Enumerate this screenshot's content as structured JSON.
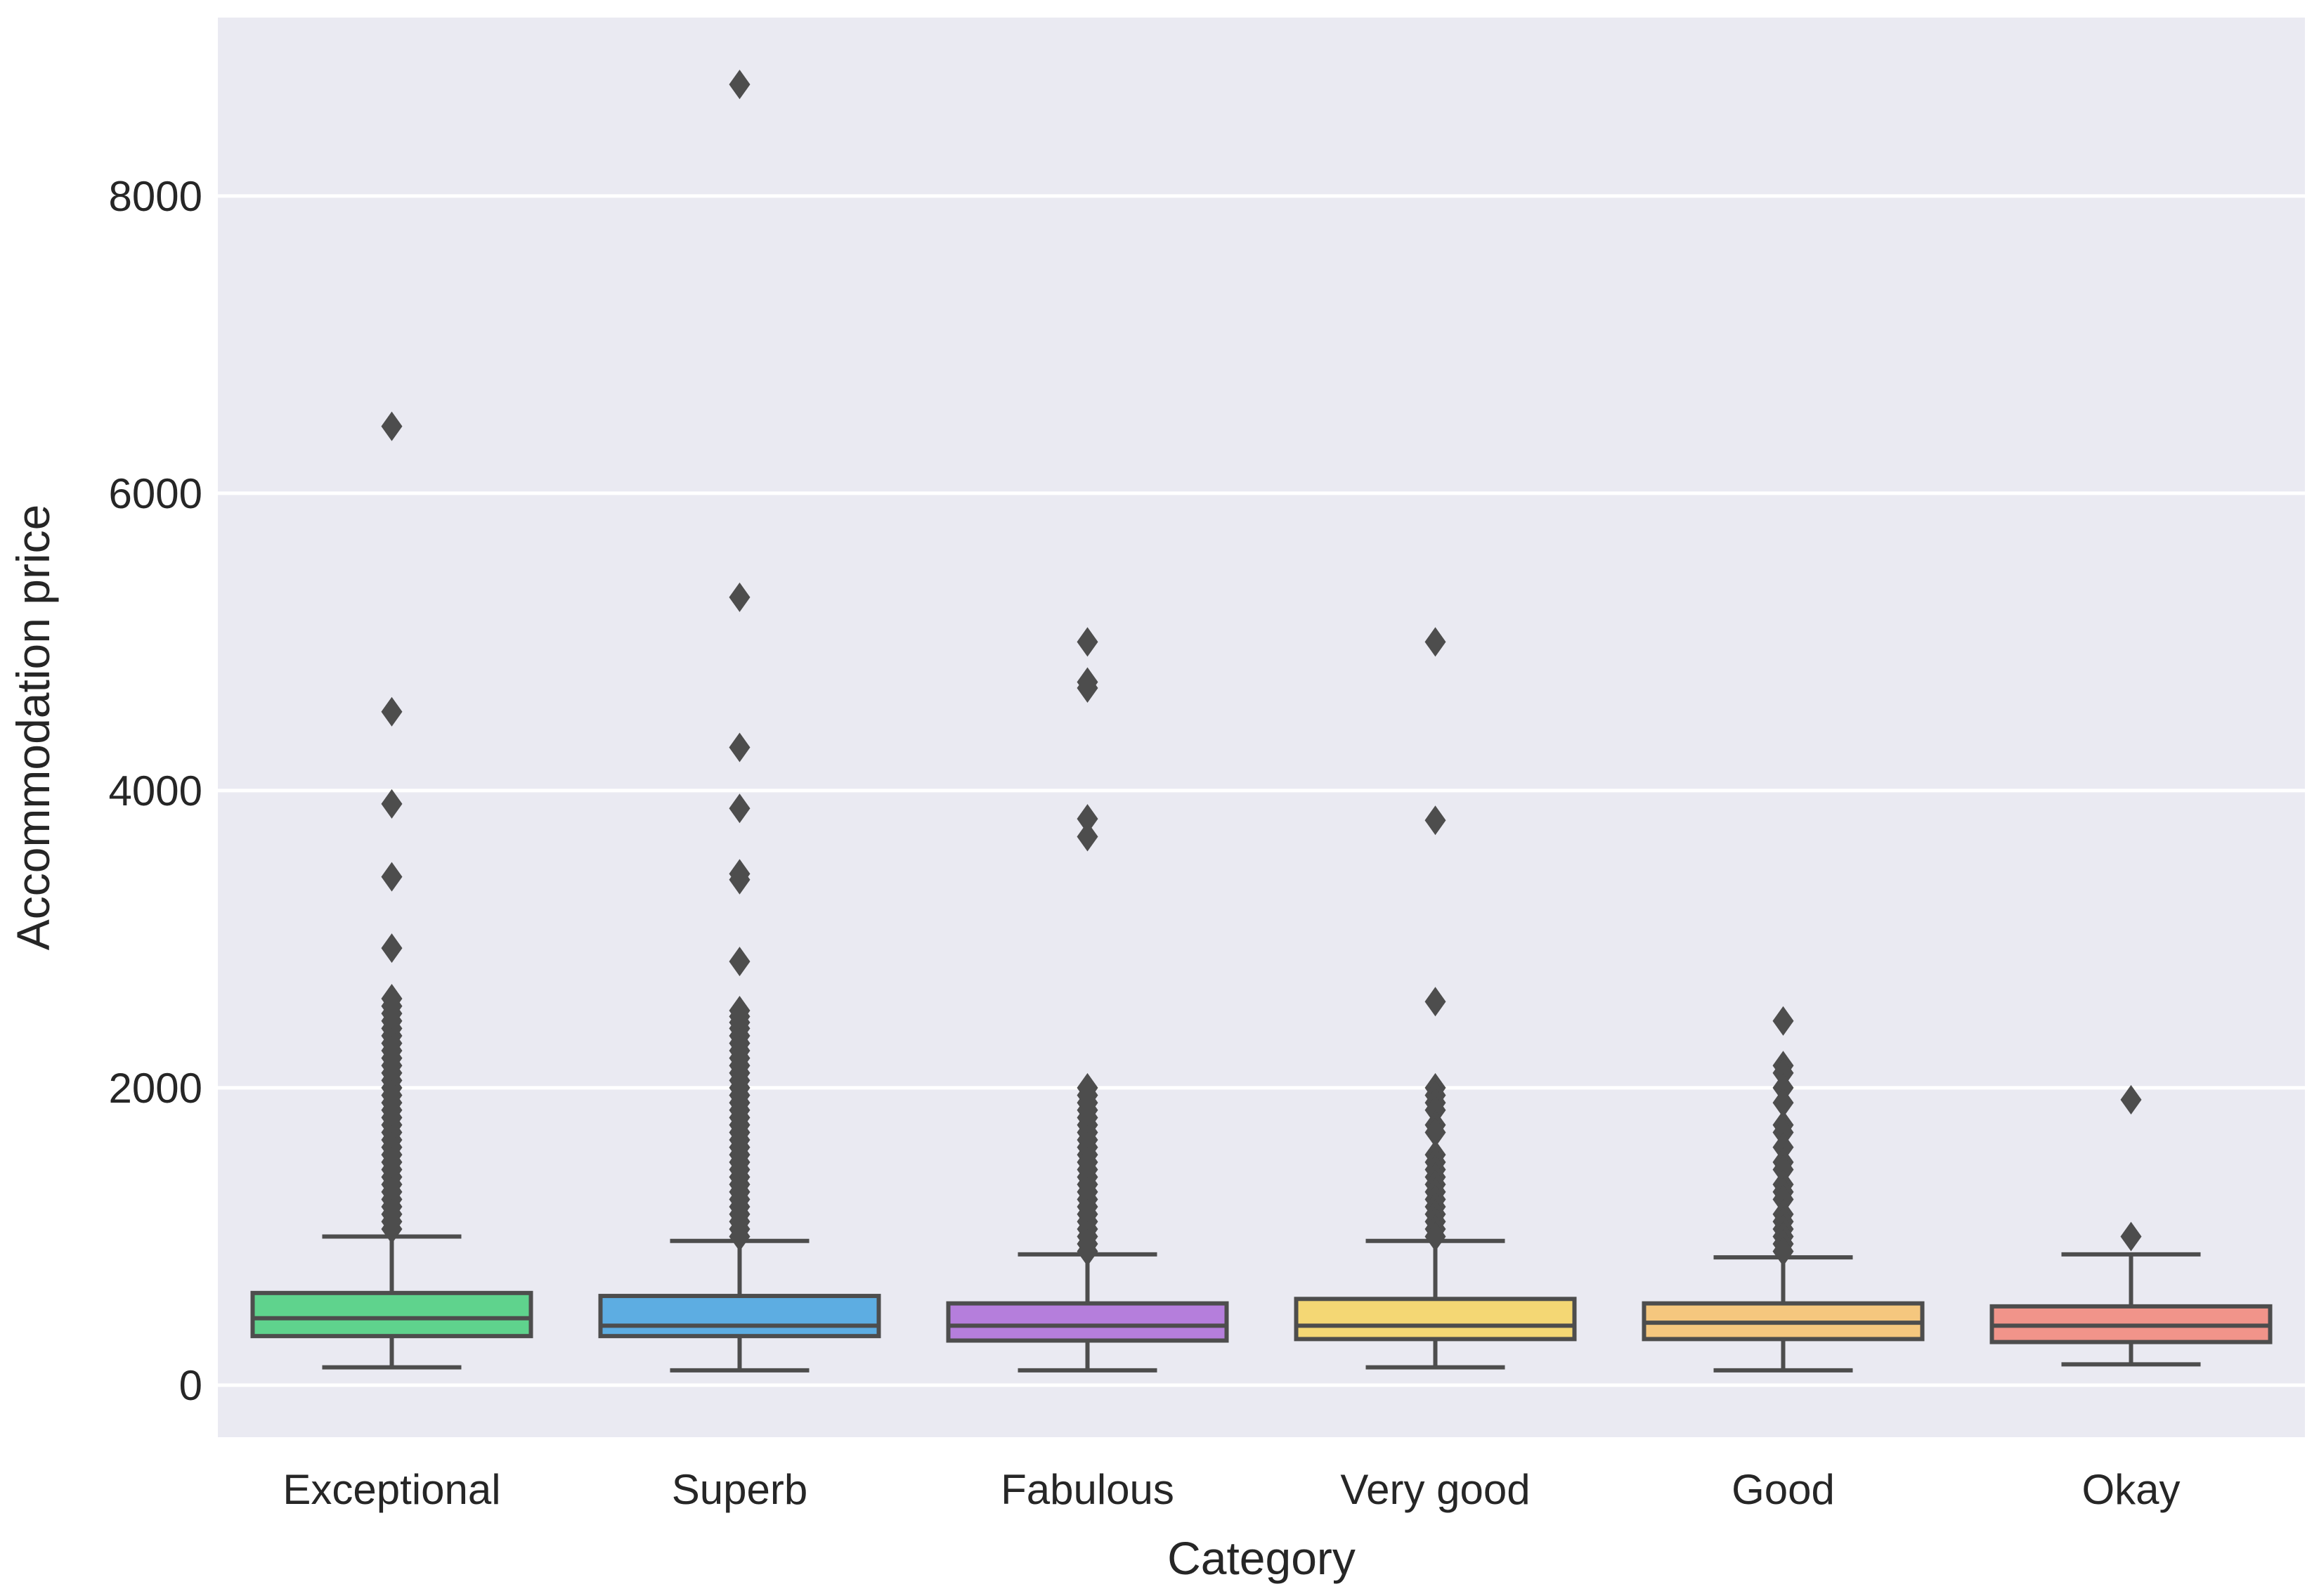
{
  "chart_data": {
    "type": "box",
    "xlabel": "Category",
    "ylabel": "Accommodation price",
    "ylim": [
      -350,
      9200
    ],
    "yticks": [
      0,
      2000,
      4000,
      6000,
      8000
    ],
    "grid": true,
    "categories": [
      "Exceptional",
      "Superb",
      "Fabulous",
      "Very good",
      "Good",
      "Okay"
    ],
    "boxes": [
      {
        "category": "Exceptional",
        "color": "#5fd38d",
        "whisker_low": 120,
        "q1": 330,
        "median": 450,
        "q3": 620,
        "whisker_high": 1000,
        "outliers": [
          6450,
          4530,
          3910,
          3420,
          2940,
          2600,
          2550,
          2500,
          2450,
          2400,
          2350,
          2300,
          2250,
          2200,
          2150,
          2100,
          2050,
          2000,
          1950,
          1900,
          1850,
          1800,
          1750,
          1700,
          1650,
          1600,
          1550,
          1500,
          1450,
          1400,
          1350,
          1300,
          1250,
          1200,
          1150,
          1100,
          1050
        ]
      },
      {
        "category": "Superb",
        "color": "#5dade2",
        "whisker_low": 100,
        "q1": 330,
        "median": 400,
        "q3": 600,
        "whisker_high": 970,
        "outliers": [
          8750,
          5300,
          4290,
          3880,
          3440,
          3400,
          2850,
          2520,
          2480,
          2440,
          2400,
          2350,
          2300,
          2250,
          2200,
          2150,
          2100,
          2050,
          2000,
          1950,
          1900,
          1850,
          1800,
          1750,
          1700,
          1650,
          1600,
          1550,
          1500,
          1450,
          1400,
          1350,
          1300,
          1250,
          1200,
          1150,
          1100,
          1050,
          1000
        ]
      },
      {
        "category": "Fabulous",
        "color": "#b57edc",
        "whisker_low": 100,
        "q1": 300,
        "median": 400,
        "q3": 550,
        "whisker_high": 880,
        "outliers": [
          5000,
          4730,
          4690,
          3810,
          3690,
          2000,
          1950,
          1900,
          1850,
          1800,
          1750,
          1700,
          1650,
          1600,
          1550,
          1500,
          1450,
          1400,
          1350,
          1300,
          1250,
          1200,
          1150,
          1100,
          1050,
          1000,
          950,
          900
        ]
      },
      {
        "category": "Very good",
        "color": "#f4d774",
        "whisker_low": 120,
        "q1": 310,
        "median": 400,
        "q3": 580,
        "whisker_high": 970,
        "outliers": [
          5000,
          3800,
          2580,
          2000,
          1950,
          1900,
          1850,
          1750,
          1700,
          1550,
          1500,
          1450,
          1400,
          1350,
          1300,
          1250,
          1200,
          1150,
          1100,
          1050,
          1000
        ]
      },
      {
        "category": "Good",
        "color": "#f5c77e",
        "whisker_low": 100,
        "q1": 310,
        "median": 420,
        "q3": 550,
        "whisker_high": 860,
        "outliers": [
          2450,
          2150,
          2100,
          2000,
          1900,
          1750,
          1700,
          1600,
          1500,
          1450,
          1350,
          1300,
          1250,
          1150,
          1100,
          1050,
          1000,
          950,
          900
        ]
      },
      {
        "category": "Okay",
        "color": "#f1948a",
        "whisker_low": 140,
        "q1": 290,
        "median": 400,
        "q3": 530,
        "whisker_high": 880,
        "outliers": [
          1920,
          1000
        ]
      }
    ]
  }
}
